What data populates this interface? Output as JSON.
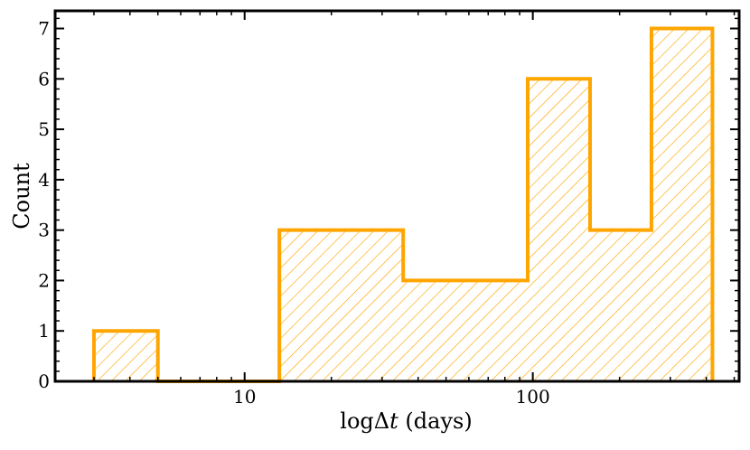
{
  "chart_data": {
    "type": "bar",
    "histogram": true,
    "x_scale": "log",
    "xlim": [
      2.2,
      520
    ],
    "ylim": [
      0,
      7.35
    ],
    "xlabel_prefix": "log",
    "xlabel_var": "Δ",
    "xlabel_var_italic": "t",
    "xlabel_suffix": " (days)",
    "ylabel": "Count",
    "x_ticks": [
      10,
      100
    ],
    "x_tick_labels": [
      "10",
      "100"
    ],
    "y_ticks": [
      0,
      1,
      2,
      3,
      4,
      5,
      6,
      7
    ],
    "y_tick_labels": [
      "0",
      "1",
      "2",
      "3",
      "4",
      "5",
      "6",
      "7"
    ],
    "bins": [
      {
        "x0": 3.0,
        "x1": 5.0,
        "count": 1
      },
      {
        "x0": 5.0,
        "x1": 13.2,
        "count": 0
      },
      {
        "x0": 13.2,
        "x1": 35.5,
        "count": 3
      },
      {
        "x0": 35.5,
        "x1": 96.0,
        "count": 2
      },
      {
        "x0": 96.0,
        "x1": 158.0,
        "count": 6
      },
      {
        "x0": 158.0,
        "x1": 258.0,
        "count": 3
      },
      {
        "x0": 258.0,
        "x1": 420.0,
        "count": 7
      }
    ],
    "style": {
      "edge_color": "#FFA500",
      "fill": "hatched",
      "hatch": "///"
    },
    "grid": false,
    "legend": false
  }
}
